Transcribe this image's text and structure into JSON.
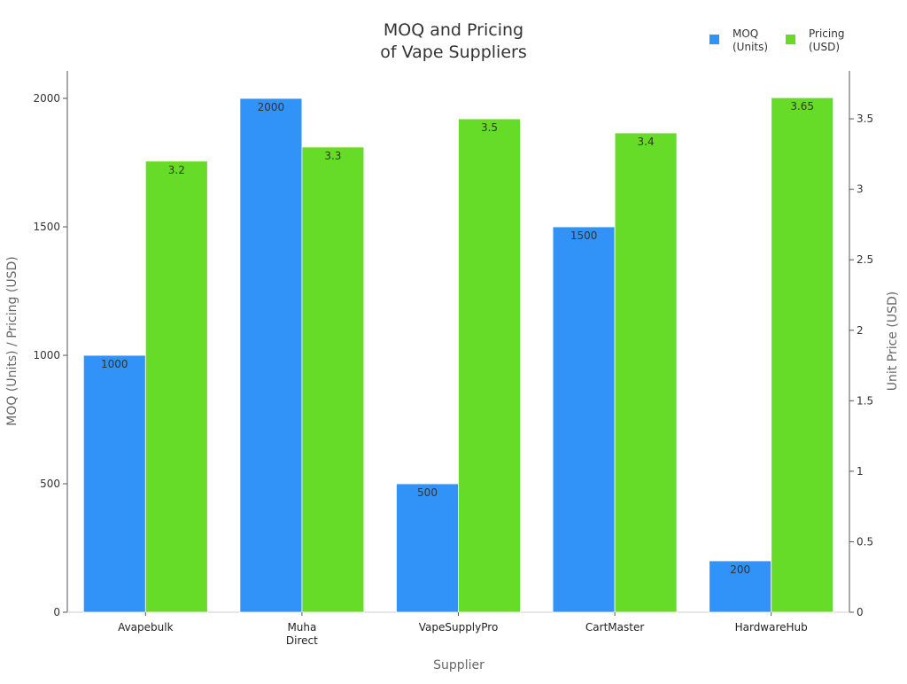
{
  "chart_data": {
    "type": "bar",
    "title": "MOQ and Pricing\nof Vape Suppliers",
    "title_lines": [
      "MOQ and Pricing",
      "of Vape Suppliers"
    ],
    "xlabel": "Supplier",
    "ylabel": "MOQ (Units) / Pricing (USD)",
    "ylabel_right": "Unit Price (USD)",
    "categories": [
      "Avapebulk",
      "Muha\nDirect",
      "VapeSupplyPro",
      "CartMaster",
      "HardwareHub"
    ],
    "series": [
      {
        "name": "MOQ\n(Units)",
        "axis": "left",
        "color": "#3192f7",
        "values": [
          1000,
          2000,
          500,
          1500,
          200
        ],
        "labels": [
          "1000",
          "2000",
          "500",
          "1500",
          "200"
        ]
      },
      {
        "name": "Pricing\n(USD)",
        "axis": "right",
        "color": "#67dc28",
        "values": [
          3.2,
          3.3,
          3.5,
          3.4,
          3.65
        ],
        "labels": [
          "3.2",
          "3.3",
          "3.5",
          "3.4",
          "3.65"
        ]
      }
    ],
    "ylim": [
      0,
      2107
    ],
    "ylim_right": [
      0,
      3.84
    ],
    "yticks": [
      "0",
      "500",
      "1000",
      "1500",
      "2000"
    ],
    "yticks_values": [
      0,
      500,
      1000,
      1500,
      2000
    ],
    "yticks_right": [
      "0",
      "0.5",
      "1",
      "1.5",
      "2",
      "2.5",
      "3",
      "3.5"
    ],
    "yticks_right_values": [
      0,
      0.5,
      1,
      1.5,
      2,
      2.5,
      3,
      3.5
    ],
    "grid": false,
    "legend_position": "top-right"
  }
}
